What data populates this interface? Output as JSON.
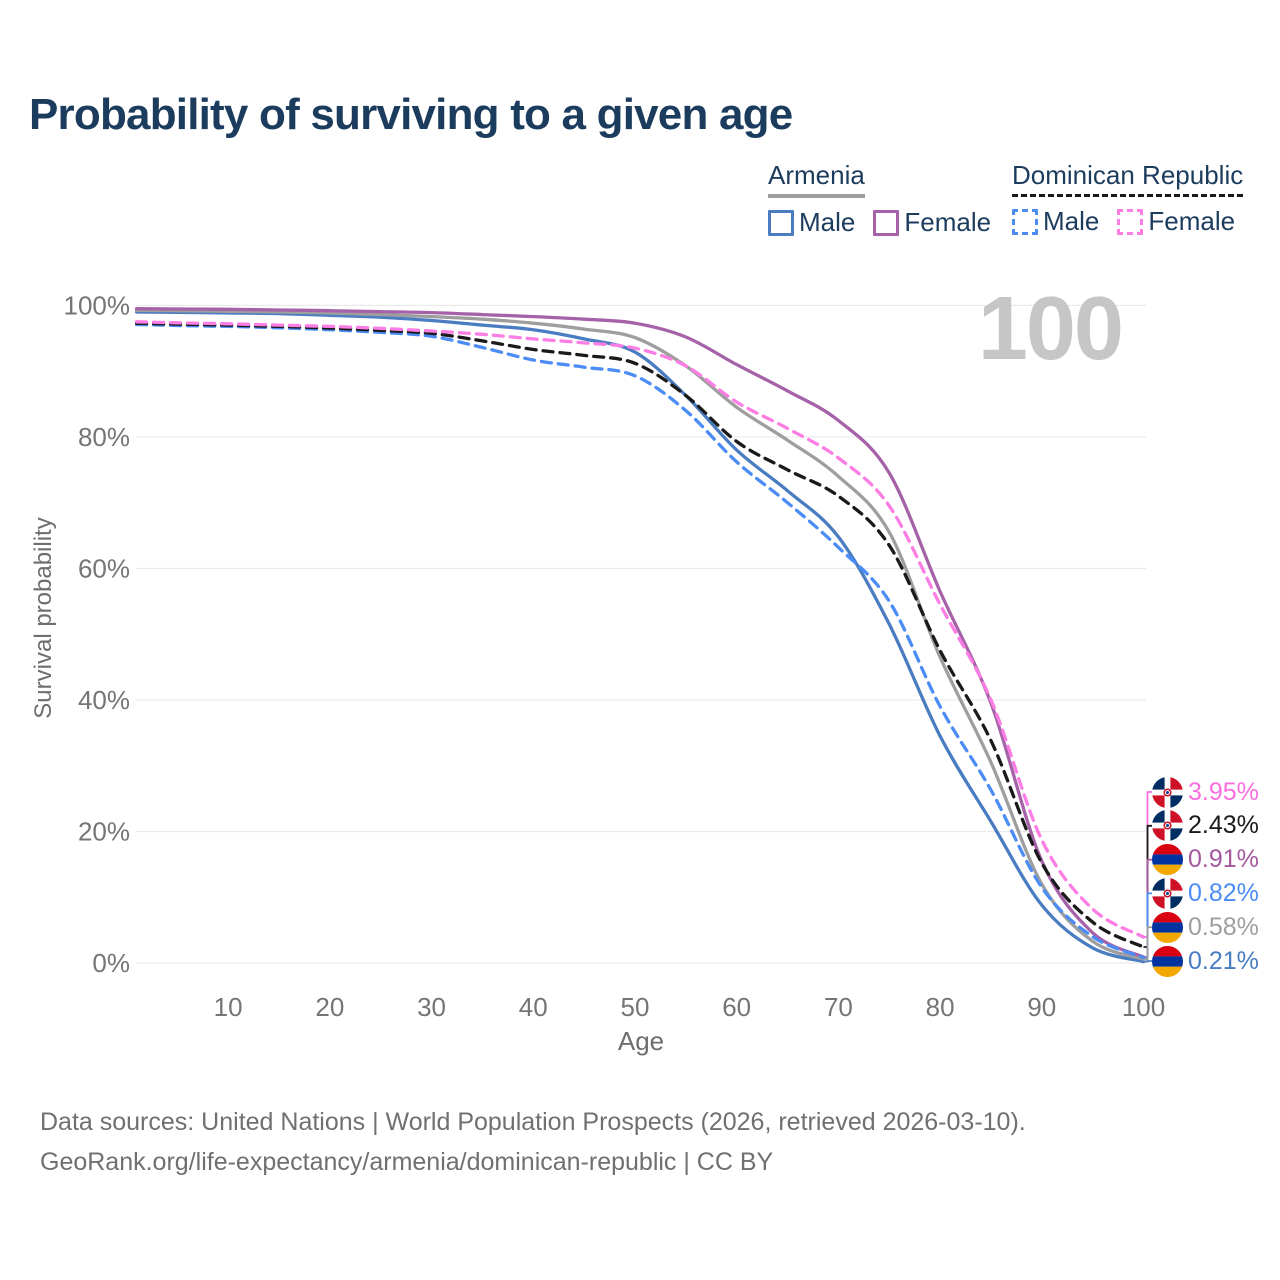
{
  "header": {
    "title": "Probability of surviving to a given age"
  },
  "legend": {
    "groups": [
      {
        "label": "Armenia",
        "underline_color": "#9e9e9e",
        "underline_style": "solid",
        "items": [
          {
            "label": "Male",
            "swatch_color": "#4a7cc2",
            "swatch_style": "solid"
          },
          {
            "label": "Female",
            "swatch_color": "#a662a8",
            "swatch_style": "solid"
          }
        ]
      },
      {
        "label": "Dominican Republic",
        "underline_color": "#1a1a1a",
        "underline_style": "dashed",
        "items": [
          {
            "label": "Male",
            "swatch_color": "#4b8cf5",
            "swatch_style": "dashed"
          },
          {
            "label": "Female",
            "swatch_color": "#fc7de4",
            "swatch_style": "dashed"
          }
        ]
      }
    ]
  },
  "chart_data": {
    "type": "line",
    "title": "Probability of surviving to a given age",
    "xlabel": "Age",
    "ylabel": "Survival probability",
    "xlim": [
      1,
      100
    ],
    "ylim": [
      0,
      100
    ],
    "grid": "horizontal",
    "legend_position": "top-right",
    "age_counter": "100",
    "x_ticks": [
      {
        "label": "10",
        "value": 10
      },
      {
        "label": "20",
        "value": 20
      },
      {
        "label": "30",
        "value": 30
      },
      {
        "label": "40",
        "value": 40
      },
      {
        "label": "50",
        "value": 50
      },
      {
        "label": "60",
        "value": 60
      },
      {
        "label": "70",
        "value": 70
      },
      {
        "label": "80",
        "value": 80
      },
      {
        "label": "90",
        "value": 90
      },
      {
        "label": "100",
        "value": 100
      }
    ],
    "y_ticks": [
      {
        "label": "0%",
        "value": 0
      },
      {
        "label": "20%",
        "value": 20
      },
      {
        "label": "40%",
        "value": 40
      },
      {
        "label": "60%",
        "value": 60
      },
      {
        "label": "80%",
        "value": 80
      },
      {
        "label": "100%",
        "value": 100
      }
    ],
    "x": [
      1,
      5,
      10,
      15,
      20,
      25,
      30,
      35,
      40,
      45,
      50,
      55,
      60,
      65,
      70,
      75,
      80,
      85,
      90,
      95,
      100
    ],
    "series": [
      {
        "name": "Armenia Male",
        "country": "Armenia",
        "sex": "Male",
        "color": "#4a7cc2",
        "line_style": "solid",
        "end_label": "0.21%",
        "values": [
          99.0,
          98.95,
          98.85,
          98.75,
          98.5,
          98.2,
          97.7,
          97.0,
          96.3,
          94.9,
          92.9,
          86.3,
          78.0,
          71.8,
          64.8,
          51.5,
          34.5,
          21.5,
          8.8,
          2.3,
          0.21
        ]
      },
      {
        "name": "Armenia Total",
        "country": "Armenia",
        "sex": "Both",
        "color": "#9e9e9e",
        "line_style": "solid",
        "end_label": "0.58%",
        "values": [
          99.25,
          99.2,
          99.1,
          99.0,
          98.85,
          98.6,
          98.3,
          97.9,
          97.3,
          96.4,
          95.1,
          90.8,
          84.5,
          79.5,
          74.0,
          65.5,
          46.5,
          30.5,
          12.0,
          3.3,
          0.58
        ]
      },
      {
        "name": "Armenia Female",
        "country": "Armenia",
        "sex": "Female",
        "color": "#a662a8",
        "line_style": "solid",
        "end_label": "0.91%",
        "values": [
          99.5,
          99.45,
          99.4,
          99.3,
          99.2,
          99.05,
          98.9,
          98.6,
          98.3,
          97.9,
          97.3,
          95.2,
          91.0,
          87.0,
          82.5,
          74.5,
          56.5,
          39.5,
          15.5,
          4.6,
          0.91
        ]
      },
      {
        "name": "Dominican Republic Male",
        "country": "Dominican Republic",
        "sex": "Male",
        "color": "#4b8cf5",
        "line_style": "dashed",
        "end_label": "0.82%",
        "values": [
          97.1,
          96.95,
          96.8,
          96.6,
          96.3,
          95.9,
          95.3,
          93.6,
          91.7,
          90.6,
          89.3,
          84.0,
          76.2,
          70.0,
          63.2,
          55.0,
          39.0,
          26.3,
          11.5,
          4.0,
          0.82
        ]
      },
      {
        "name": "Dominican Republic Total",
        "country": "Dominican Republic",
        "sex": "Both",
        "color": "#1a1a1a",
        "line_style": "dashed",
        "end_label": "2.43%",
        "values": [
          97.3,
          97.15,
          97.0,
          96.8,
          96.55,
          96.2,
          95.75,
          94.6,
          93.3,
          92.4,
          91.2,
          86.3,
          79.3,
          75.0,
          71.0,
          63.5,
          47.5,
          33.8,
          15.2,
          6.2,
          2.43
        ]
      },
      {
        "name": "Dominican Republic Female",
        "country": "Dominican Republic",
        "sex": "Female",
        "color": "#fc7de4",
        "line_style": "dashed",
        "end_label": "3.95%",
        "values": [
          97.5,
          97.35,
          97.2,
          97.0,
          96.8,
          96.5,
          96.1,
          95.6,
          94.9,
          94.3,
          93.5,
          90.8,
          85.3,
          81.3,
          76.8,
          69.5,
          54.5,
          40.0,
          18.7,
          8.2,
          3.95
        ]
      }
    ]
  },
  "end_labels": [
    {
      "series": "Dominican Republic Female",
      "value": "3.95%",
      "flag": "dominican-republic",
      "color": "#fa6ede"
    },
    {
      "series": "Dominican Republic Total",
      "value": "2.43%",
      "flag": "dominican-republic",
      "color": "#1a1a1a"
    },
    {
      "series": "Armenia Female",
      "value": "0.91%",
      "flag": "armenia",
      "color": "#a4589f"
    },
    {
      "series": "Dominican Republic Male",
      "value": "0.82%",
      "flag": "dominican-republic",
      "color": "#4b8cf5"
    },
    {
      "series": "Armenia Total",
      "value": "0.58%",
      "flag": "armenia",
      "color": "#9e9e9e"
    },
    {
      "series": "Armenia Male",
      "value": "0.21%",
      "flag": "armenia",
      "color": "#4a7cc2"
    }
  ],
  "footer": {
    "line1": "Data sources: United Nations | World Population Prospects (2026, retrieved 2026-03-10).",
    "line2": "GeoRank.org/life-expectancy/armenia/dominican-republic | CC BY"
  }
}
